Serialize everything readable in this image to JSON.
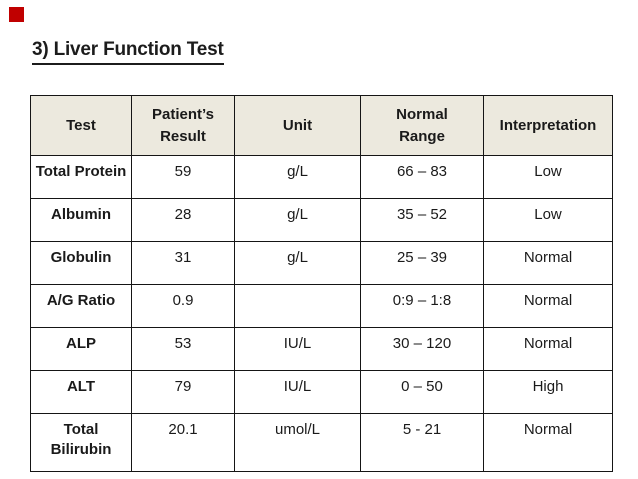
{
  "colors": {
    "marker_red": "#c00000",
    "header_bg": "#ece9de",
    "border": "#151515",
    "text": "#1a1a1a"
  },
  "slide": {
    "title": "3) Liver Function Test"
  },
  "table": {
    "columns": {
      "test": "Test",
      "result": "Patient’s Result",
      "unit": "Unit",
      "range": "Normal Range",
      "interpretation": "Interpretation"
    },
    "rows": [
      {
        "test": "Total Protein",
        "result": "59",
        "unit": "g/L",
        "range": "66 – 83",
        "interpretation": "Low"
      },
      {
        "test": "Albumin",
        "result": "28",
        "unit": "g/L",
        "range": "35 – 52",
        "interpretation": "Low"
      },
      {
        "test": "Globulin",
        "result": "31",
        "unit": "g/L",
        "range": "25 – 39",
        "interpretation": "Normal"
      },
      {
        "test": "A/G Ratio",
        "result": "0.9",
        "unit": "",
        "range": "0:9 – 1:8",
        "interpretation": "Normal"
      },
      {
        "test": "ALP",
        "result": "53",
        "unit": "IU/L",
        "range": "30 – 120",
        "interpretation": "Normal"
      },
      {
        "test": "ALT",
        "result": "79",
        "unit": "IU/L",
        "range": "0 – 50",
        "interpretation": "High"
      },
      {
        "test": "Total Bilirubin",
        "result": "20.1",
        "unit": "umol/L",
        "range": "5 - 21",
        "interpretation": "Normal"
      }
    ]
  },
  "chart_data": {
    "type": "table",
    "title": "3) Liver Function Test",
    "columns": [
      "Test",
      "Patient’s Result",
      "Unit",
      "Normal Range",
      "Interpretation"
    ],
    "rows": [
      [
        "Total Protein",
        "59",
        "g/L",
        "66 – 83",
        "Low"
      ],
      [
        "Albumin",
        "28",
        "g/L",
        "35 – 52",
        "Low"
      ],
      [
        "Globulin",
        "31",
        "g/L",
        "25 – 39",
        "Normal"
      ],
      [
        "A/G Ratio",
        "0.9",
        "",
        "0:9 – 1:8",
        "Normal"
      ],
      [
        "ALP",
        "53",
        "IU/L",
        "30 – 120",
        "Normal"
      ],
      [
        "ALT",
        "79",
        "IU/L",
        "0 – 50",
        "High"
      ],
      [
        "Total Bilirubin",
        "20.1",
        "umol/L",
        "5 - 21",
        "Normal"
      ]
    ]
  }
}
